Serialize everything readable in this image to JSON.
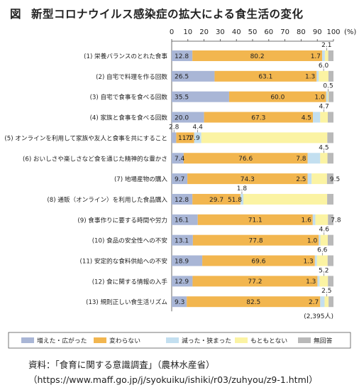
{
  "figure_label": "図",
  "title": "新型コロナウイルス感染症の拡大による食生活の変化",
  "source_line1": "資料：「食育に関する意識調査」（農林水産省）",
  "source_line2": "（https://www.maff.go.jp/j/syokuiku/ishiki/r03/zuhyou/z9-1.html）",
  "colors": {
    "increased": "#a9b6d6",
    "unchanged": "#f2b64f",
    "decreased": "#c3dff0",
    "originally_none": "#fbf3a3",
    "no_answer": "#b9b9b9"
  },
  "chart_data": {
    "type": "bar",
    "orientation": "horizontal",
    "stacked": true,
    "xlim": [
      0,
      100
    ],
    "x_unit": "(%)",
    "x_ticks": [
      0,
      10,
      20,
      30,
      40,
      50,
      60,
      70,
      80,
      90,
      100
    ],
    "legend_position": "bottom",
    "sample_note": "(2,395人)",
    "categories": [
      "(1) 栄養バランスのとれた食事",
      "(2) 自宅で料理を作る回数",
      "(3) 自宅で食事を食べる回数",
      "(4) 家族と食事を食べる回数",
      "(5) オンラインを利用して家族や友人と食事を共にすること",
      "(6) おいしさや楽しさなど食を通じた精神的な豊かさ",
      "(7) 地場産物の購入",
      "(8) 通販（オンライン）を利用した食品購入",
      "(9) 食事作りに要する時間や労力",
      "(10) 食品の安全性への不安",
      "(11) 安定的な食料供給への不安",
      "(12) 食に関する情報の入手",
      "(13) 規則正しい食生活リズム"
    ],
    "series": [
      {
        "name": "増えた・広がった",
        "values": [
          12.8,
          26.5,
          35.5,
          20.0,
          2.8,
          7.4,
          9.7,
          12.8,
          16.1,
          13.1,
          18.9,
          12.9,
          9.3
        ]
      },
      {
        "name": "変わらない",
        "values": [
          80.2,
          63.1,
          60.0,
          67.3,
          11.1,
          76.6,
          74.3,
          29.7,
          71.1,
          77.8,
          69.6,
          77.2,
          82.5
        ]
      },
      {
        "name": "減った・狭まった",
        "values": [
          1.7,
          1.3,
          1.0,
          4.5,
          4.4,
          7.8,
          2.5,
          1.8,
          1.6,
          1.0,
          1.3,
          1.3,
          2.7
        ]
      },
      {
        "name": "もともとない",
        "values": [
          2.1,
          6.0,
          0.5,
          4.7,
          77.9,
          4.5,
          9.5,
          51.8,
          7.8,
          4.6,
          6.6,
          5.2,
          2.5
        ]
      },
      {
        "name": "無回答",
        "values": [
          3.2,
          3.1,
          3.0,
          3.5,
          3.8,
          3.7,
          4.0,
          3.9,
          3.4,
          3.5,
          3.6,
          3.4,
          3.0
        ]
      }
    ],
    "label_placement": {
      "above": [
        [
          3
        ],
        [
          3
        ],
        [
          3
        ],
        [
          3
        ],
        [
          0,
          2
        ],
        [
          3
        ],
        [],
        [
          2
        ],
        [],
        [
          3
        ],
        [
          3
        ],
        [
          3
        ],
        [
          3
        ]
      ],
      "right": [
        [],
        [],
        [],
        [],
        [],
        [],
        [
          3
        ],
        [],
        [
          3
        ],
        [],
        [],
        [],
        []
      ]
    }
  }
}
